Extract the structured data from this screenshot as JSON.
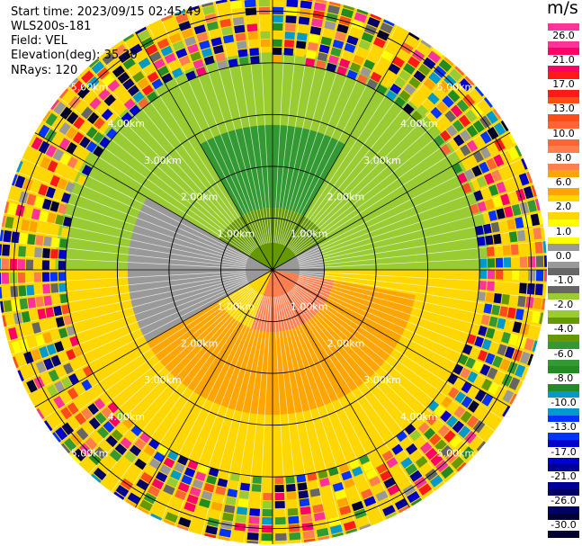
{
  "header": {
    "start_time": "Start time: 2023/09/15 02:45:49",
    "instrument": "WLS200s-181",
    "field": "Field: VEL",
    "elevation": "Elevation(deg): 35.30",
    "nrays": "NRays: 120"
  },
  "colorbar": {
    "unit": "m/s",
    "labels": [
      "26.0",
      "21.0",
      "17.0",
      "13.0",
      "10.0",
      "8.0",
      "6.0",
      "2.0",
      "1.0",
      "0.0",
      "-1.0",
      "-2.0",
      "-4.0",
      "-6.0",
      "-8.0",
      "-10.0",
      "-13.0",
      "-17.0",
      "-21.0",
      "-26.0",
      "-30.0"
    ],
    "colors": [
      "#ff3399",
      "#ff0066",
      "#ff1a1a",
      "#ff4d1a",
      "#ff6633",
      "#ff7f50",
      "#ffa500",
      "#ffd700",
      "#ffff00",
      "#999999",
      "#666666",
      "#99cc33",
      "#669900",
      "#339933",
      "#228b22",
      "#0099cc",
      "#0033ff",
      "#0000cc",
      "#000099",
      "#000066",
      "#000033"
    ]
  },
  "chart_data": {
    "type": "heatmap",
    "title": "",
    "field": "VEL",
    "unit": "m/s",
    "nrays": 120,
    "range_rings_km": [
      1.0,
      2.0,
      3.0,
      4.0,
      5.0
    ],
    "range_ring_labels": [
      "1.00km",
      "2.00km",
      "3.00km",
      "4.00km",
      "5.00km"
    ],
    "max_range_km": 5.3,
    "radial_lines_deg": [
      0,
      30,
      60,
      90,
      120,
      150,
      180,
      210,
      240,
      270,
      300,
      330
    ],
    "grid": true,
    "sectors": [
      {
        "azimuth_from_deg": 300,
        "azimuth_to_deg": 60,
        "range_from_km": 0.0,
        "range_to_km": 1.2,
        "value": -4.0
      },
      {
        "azimuth_from_deg": 330,
        "azimuth_to_deg": 30,
        "range_from_km": 1.2,
        "range_to_km": 2.8,
        "value": -6.0
      },
      {
        "azimuth_from_deg": 270,
        "azimuth_to_deg": 330,
        "range_from_km": 1.0,
        "range_to_km": 2.8,
        "value": -2.0
      },
      {
        "azimuth_from_deg": 30,
        "azimuth_to_deg": 90,
        "range_from_km": 1.0,
        "range_to_km": 2.8,
        "value": -2.0
      },
      {
        "azimuth_from_deg": 240,
        "azimuth_to_deg": 300,
        "range_from_km": 0.0,
        "range_to_km": 2.8,
        "value": 0.0
      },
      {
        "azimuth_from_deg": 60,
        "azimuth_to_deg": 100,
        "range_from_km": 0.0,
        "range_to_km": 1.0,
        "value": 0.0
      },
      {
        "azimuth_from_deg": 100,
        "azimuth_to_deg": 200,
        "range_from_km": 0.0,
        "range_to_km": 1.2,
        "value": 8.0
      },
      {
        "azimuth_from_deg": 100,
        "azimuth_to_deg": 240,
        "range_from_km": 1.2,
        "range_to_km": 2.8,
        "value": 6.0
      },
      {
        "azimuth_from_deg": 90,
        "azimuth_to_deg": 270,
        "range_from_km": 2.8,
        "range_to_km": 4.2,
        "value": 2.0
      },
      {
        "azimuth_from_deg": 270,
        "azimuth_to_deg": 90,
        "range_from_km": 2.8,
        "range_to_km": 4.2,
        "value": -2.0
      }
    ],
    "noise_beyond_km": 4.0
  }
}
